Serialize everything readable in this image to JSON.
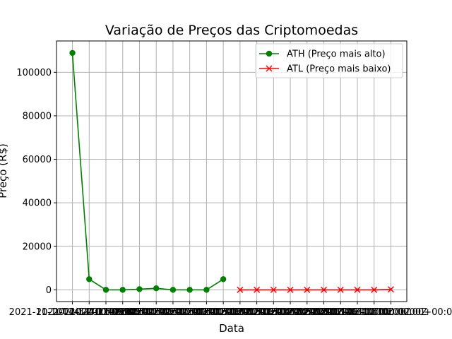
{
  "chart_data": {
    "type": "line",
    "title": "Variação de Preços das Criptomoedas",
    "xlabel": "Data",
    "ylabel": "Preço (R$)",
    "grid": true,
    "legend_position": "top-right",
    "ylim": [
      -5400,
      114400
    ],
    "yticks": [
      0,
      20000,
      40000,
      60000,
      80000,
      100000
    ],
    "xtick_labels": [
      "2021-11-10T14:24:11.999Z",
      "2021-04-14T00:00:00Z",
      "2021-11-10T00:00:00Z",
      "2021-11-09T00:00:00Z",
      "2021-05-08T00:00:00Z",
      "2021-05-10T00:00:00Z",
      "2021-11-08T00:00:00Z",
      "2021-11-10T00:00:00Z",
      "2021-11-09T00:00:00Z",
      "2021-11-10T00:00:00Z",
      "2011-11-18T00:00:00Z",
      "2015-10-20T00:00:00Z",
      "2013-12-18T00:00:00Z",
      "2015-01-14T00:00:00Z",
      "2015-08-24T00:00:00Z",
      "2017-12-22T00:00:00Z",
      "2015-10-06T00:00:00Z",
      "2018-12-06T00:00:00Z",
      "2013-06-17T00:00:00Z",
      "2018-03-14T00:00:00+00:00"
    ],
    "series": [
      {
        "name": "ATH (Preço mais alto)",
        "color": "#008000",
        "marker": "circle",
        "x": [
          0,
          1,
          2,
          3,
          4,
          5,
          6,
          7,
          8,
          9
        ],
        "values": [
          108900,
          4900,
          0,
          0,
          300,
          700,
          0,
          0,
          0,
          4900
        ]
      },
      {
        "name": "ATL (Preço mais baixo)",
        "color": "#ff0000",
        "marker": "x",
        "x": [
          10,
          11,
          12,
          13,
          14,
          15,
          16,
          17,
          18,
          19
        ],
        "values": [
          0,
          0,
          0,
          0,
          0,
          0,
          0,
          0,
          0,
          200
        ]
      }
    ]
  }
}
